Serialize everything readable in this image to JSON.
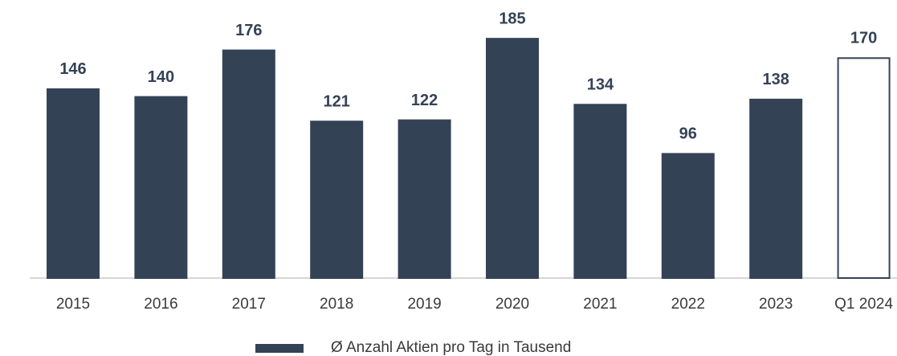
{
  "chart_data": {
    "type": "bar",
    "categories": [
      "2015",
      "2016",
      "2017",
      "2018",
      "2019",
      "2020",
      "2021",
      "2022",
      "2023",
      "Q1 2024"
    ],
    "series": [
      {
        "name": "Ø Anzahl Aktien pro Tag in Tausend",
        "color": "#344256",
        "values": [
          146,
          140,
          176,
          121,
          122,
          185,
          134,
          96,
          138,
          170
        ],
        "colors": [
          "#344256",
          "#344256",
          "#344256",
          "#344256",
          "#344256",
          "#344256",
          "#344256",
          "#344256",
          "#344256",
          "#ffffff"
        ]
      }
    ],
    "ylim": [
      0,
      200
    ],
    "grid": false,
    "legend": "bottom"
  }
}
